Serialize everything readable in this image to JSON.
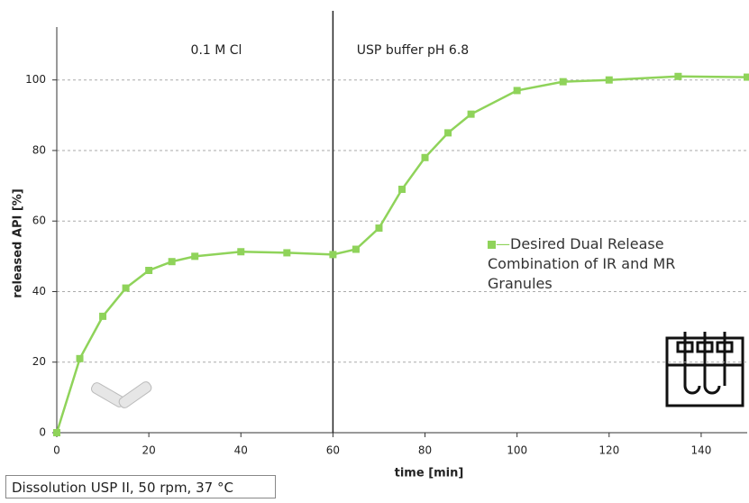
{
  "chart_data": {
    "type": "line",
    "x_label": "time [min]",
    "y_label": "released API [%]",
    "x": [
      0,
      5,
      10,
      15,
      20,
      25,
      30,
      40,
      50,
      60,
      65,
      70,
      75,
      80,
      85,
      90,
      100,
      110,
      120,
      135,
      150
    ],
    "series": [
      {
        "name": "Desired Dual Release Combination of IR and MR Granules",
        "color": "#8fd35a",
        "values": [
          0,
          21,
          33,
          41,
          46,
          48.5,
          50,
          51.3,
          51,
          50.5,
          52,
          58,
          69,
          78,
          85,
          90.3,
          97,
          99.5,
          100,
          101,
          100.8
        ]
      }
    ],
    "xlim": [
      0,
      150
    ],
    "ylim": [
      0,
      115
    ],
    "xticks": [
      0,
      20,
      40,
      60,
      80,
      100,
      120,
      140
    ],
    "yticks": [
      0,
      20,
      40,
      60,
      80,
      100
    ],
    "grid": true,
    "vline": 60,
    "annotations": [
      "0.1 M Cl",
      "USP buffer pH 6.8"
    ],
    "footnote": "Dissolution USP II,  50 rpm, 37 °C"
  }
}
